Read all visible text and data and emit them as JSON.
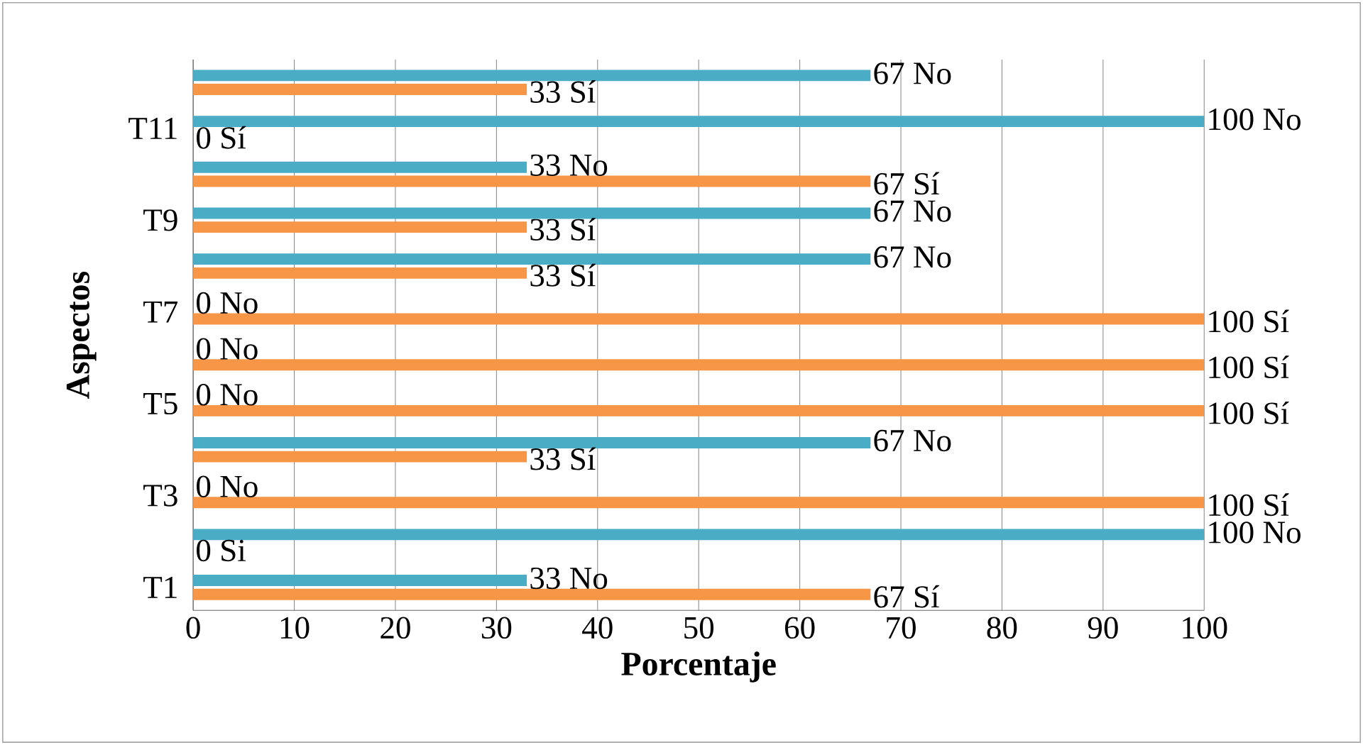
{
  "chart_data": {
    "type": "bar",
    "orientation": "horizontal",
    "xlabel": "Porcentaje",
    "ylabel": "Aspectos",
    "categories": [
      null,
      "T11",
      null,
      "T9",
      null,
      "T7",
      null,
      "T5",
      null,
      "T3",
      null,
      "T1"
    ],
    "xlim": [
      0,
      100
    ],
    "xticks": [
      0,
      10,
      20,
      30,
      40,
      50,
      60,
      70,
      80,
      90,
      100
    ],
    "grid": "x",
    "series": [
      {
        "color": "#f79646",
        "values": [
          33,
          0,
          67,
          33,
          33,
          100,
          100,
          100,
          33,
          100,
          0,
          67
        ],
        "value_labels": [
          "33 Sí",
          "0 Sí",
          "67 Sí",
          "33 Sí",
          "33 Sí",
          "100 Sí",
          "100 Sí",
          "100 Sí",
          "33 Sí",
          "100 Sí",
          "0 Si",
          "67 Sí"
        ]
      },
      {
        "color": "#4bacc6",
        "values": [
          67,
          100,
          33,
          67,
          67,
          0,
          0,
          0,
          67,
          0,
          100,
          33
        ],
        "value_labels": [
          "67 No",
          "100 No",
          "33 No",
          "67 No",
          "67 No",
          "0 No",
          "0 No",
          "0 No",
          "67 No",
          "0 No",
          "100 No",
          "33 No"
        ]
      }
    ]
  }
}
